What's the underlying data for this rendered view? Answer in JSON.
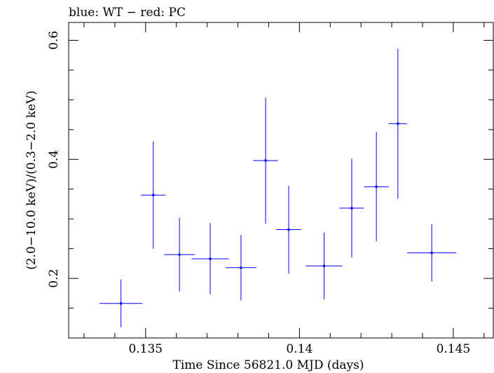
{
  "chart_data": {
    "type": "scatter",
    "title": "blue: WT − red: PC",
    "xlabel": "Time Since 56821.0 MJD (days)",
    "ylabel": "(2.0−10.0 keV)/(0.3−2.0 keV)",
    "xlim": [
      0.1325,
      0.1463
    ],
    "ylim": [
      0.1,
      0.63
    ],
    "xticks": [
      0.135,
      0.14,
      0.145
    ],
    "xtick_labels": [
      "0.135",
      "0.14",
      "0.145"
    ],
    "yticks": [
      0.2,
      0.4,
      0.6
    ],
    "ytick_labels": [
      "0.2",
      "0.4",
      "0.6"
    ],
    "x_minor_step": 0.001,
    "y_minor_step": 0.05,
    "grid": false,
    "series": [
      {
        "name": "WT",
        "color": "#0000ff",
        "points": [
          {
            "x": 0.1342,
            "xerr": 0.0007,
            "y": 0.158,
            "yerr_low": 0.04,
            "yerr_high": 0.04
          },
          {
            "x": 0.13525,
            "xerr": 0.0004,
            "y": 0.34,
            "yerr_low": 0.09,
            "yerr_high": 0.09
          },
          {
            "x": 0.1361,
            "xerr": 0.0005,
            "y": 0.24,
            "yerr_low": 0.062,
            "yerr_high": 0.062
          },
          {
            "x": 0.1371,
            "xerr": 0.0006,
            "y": 0.233,
            "yerr_low": 0.06,
            "yerr_high": 0.06
          },
          {
            "x": 0.1381,
            "xerr": 0.0005,
            "y": 0.218,
            "yerr_low": 0.055,
            "yerr_high": 0.055
          },
          {
            "x": 0.1389,
            "xerr": 0.0004,
            "y": 0.398,
            "yerr_low": 0.106,
            "yerr_high": 0.106
          },
          {
            "x": 0.13965,
            "xerr": 0.0004,
            "y": 0.282,
            "yerr_low": 0.074,
            "yerr_high": 0.074
          },
          {
            "x": 0.1408,
            "xerr": 0.0006,
            "y": 0.221,
            "yerr_low": 0.056,
            "yerr_high": 0.056
          },
          {
            "x": 0.1417,
            "xerr": 0.0004,
            "y": 0.318,
            "yerr_low": 0.083,
            "yerr_high": 0.083
          },
          {
            "x": 0.1425,
            "xerr": 0.0004,
            "y": 0.354,
            "yerr_low": 0.092,
            "yerr_high": 0.092
          },
          {
            "x": 0.1432,
            "xerr": 0.0003,
            "y": 0.46,
            "yerr_low": 0.126,
            "yerr_high": 0.126
          },
          {
            "x": 0.1443,
            "xerr": 0.0008,
            "y": 0.243,
            "yerr_low": 0.048,
            "yerr_high": 0.048
          }
        ]
      }
    ]
  }
}
